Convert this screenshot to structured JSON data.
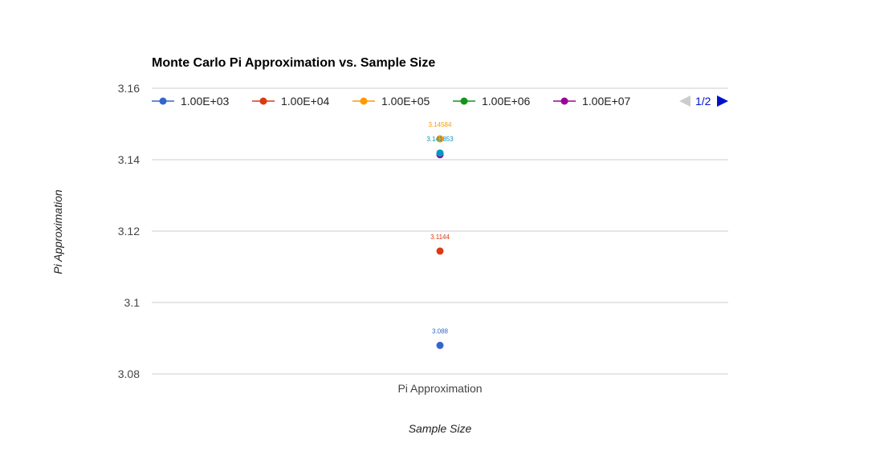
{
  "chart_data": {
    "type": "scatter",
    "title": "Monte Carlo Pi Approximation vs. Sample Size",
    "xlabel": "Sample Size",
    "ylabel": "Pi Approximation",
    "categories": [
      "Pi Approximation"
    ],
    "ylim": [
      3.08,
      3.16
    ],
    "yticks": [
      "3.08",
      "3.1",
      "3.12",
      "3.14",
      "3.16"
    ],
    "grid": true,
    "legend_position": "top",
    "series": [
      {
        "name": "1.00E+03",
        "color": "#3366cc",
        "values": [
          3.088
        ],
        "label": "3.088"
      },
      {
        "name": "1.00E+04",
        "color": "#dc3912",
        "values": [
          3.1144
        ],
        "label": "3.1144"
      },
      {
        "name": "1.00E+05",
        "color": "#ff9900",
        "values": [
          3.14584
        ],
        "label": "3.14584"
      },
      {
        "name": "1.00E+06",
        "color": "#109618",
        "values": [
          3.1418
        ],
        "label": ""
      },
      {
        "name": "1.00E+07",
        "color": "#990099",
        "values": [
          3.1414
        ],
        "label": ""
      },
      {
        "name": "",
        "color": "#0099c6",
        "values": [
          3.141853
        ],
        "label": "3.141853"
      }
    ]
  },
  "legend": {
    "page": "1/2",
    "prev_icon": "triangle-left-icon",
    "next_icon": "triangle-right-icon",
    "prev_color": "#cccccc",
    "next_color": "#0011cc"
  }
}
